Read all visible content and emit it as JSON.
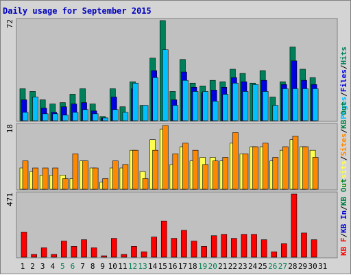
{
  "title": "Daily usage for September 2015",
  "colors": {
    "outer_bg": "#d4d4d4",
    "plot_bg": "#c0c0c0",
    "title": "#0000c0",
    "pages": "#00c0ff",
    "files": "#0000e0",
    "hits": "#00805a",
    "visits": "#ffff50",
    "sites": "#ff8800",
    "kb_out": "#008040",
    "kb_in": "#0000d0",
    "kb_f": "#ff0000",
    "weekend": "#008050",
    "weekday": "#000000"
  },
  "chart_data": [
    {
      "type": "bar",
      "panel": "hits",
      "ymax_label": "72",
      "ylim": [
        0,
        72
      ],
      "legend": [
        "Pages",
        "Files",
        "Hits"
      ],
      "legend_separator": "/",
      "categories": [
        "1",
        "2",
        "3",
        "4",
        "5",
        "6",
        "7",
        "8",
        "9",
        "10",
        "11",
        "12",
        "13",
        "14",
        "15",
        "16",
        "17",
        "18",
        "19",
        "20",
        "21",
        "22",
        "23",
        "24",
        "25",
        "26",
        "27",
        "28",
        "29",
        "30",
        "31"
      ],
      "series": [
        {
          "name": "Hits",
          "values": [
            23,
            21,
            15,
            12,
            13,
            19,
            23,
            12,
            3,
            23,
            10,
            28,
            11,
            45,
            72,
            21,
            44,
            27,
            25,
            29,
            28,
            37,
            34,
            27,
            36,
            17,
            28,
            53,
            37,
            31,
            0
          ]
        },
        {
          "name": "Files",
          "values": [
            15,
            0,
            9,
            6,
            10,
            12,
            13,
            7,
            2,
            17,
            0,
            23,
            0,
            36,
            0,
            15,
            35,
            24,
            20,
            22,
            24,
            31,
            28,
            0,
            29,
            0,
            26,
            43,
            29,
            26,
            0
          ]
        },
        {
          "name": "Pages",
          "values": [
            6,
            17,
            5,
            5,
            4,
            6,
            8,
            5,
            2,
            8,
            6,
            27,
            11,
            31,
            51,
            11,
            29,
            21,
            21,
            14,
            19,
            27,
            21,
            26,
            21,
            11,
            23,
            23,
            23,
            23,
            0
          ]
        }
      ]
    },
    {
      "type": "bar",
      "panel": "visits",
      "ymax_label": "18",
      "ylim": [
        0,
        18
      ],
      "legend": [
        "Visits",
        "Sites",
        "KB Out"
      ],
      "legend_separator": "/",
      "categories": [
        "1",
        "2",
        "3",
        "4",
        "5",
        "6",
        "7",
        "8",
        "9",
        "10",
        "11",
        "12",
        "13",
        "14",
        "15",
        "16",
        "17",
        "18",
        "19",
        "20",
        "21",
        "22",
        "23",
        "24",
        "25",
        "26",
        "27",
        "28",
        "29",
        "30",
        "31"
      ],
      "series": [
        {
          "name": "Visits",
          "values": [
            6,
            5,
            4,
            4,
            4,
            3,
            8,
            6,
            2,
            6,
            6,
            11,
            5,
            14,
            17,
            7,
            12,
            8,
            9,
            9,
            8,
            13,
            10,
            12,
            12,
            8,
            11,
            14,
            12,
            11,
            0
          ]
        },
        {
          "name": "Sites",
          "values": [
            8,
            6,
            6,
            6,
            3,
            10,
            8,
            6,
            3,
            8,
            7,
            11,
            3,
            11,
            18,
            10,
            13,
            11,
            7,
            8,
            9,
            16,
            10,
            12,
            13,
            9,
            12,
            15,
            12,
            9,
            0
          ]
        }
      ]
    },
    {
      "type": "bar",
      "panel": "kbytes",
      "ymax_label": "471",
      "ylim": [
        0,
        471
      ],
      "legend": [
        "KB F",
        "KB In",
        "KB Out"
      ],
      "legend_separator": "/",
      "categories": [
        "1",
        "2",
        "3",
        "4",
        "5",
        "6",
        "7",
        "8",
        "9",
        "10",
        "11",
        "12",
        "13",
        "14",
        "15",
        "16",
        "17",
        "18",
        "19",
        "20",
        "21",
        "22",
        "23",
        "24",
        "25",
        "26",
        "27",
        "28",
        "29",
        "30",
        "31"
      ],
      "series": [
        {
          "name": "KB F",
          "values": [
            187,
            20,
            70,
            20,
            120,
            80,
            130,
            70,
            10,
            140,
            20,
            80,
            40,
            150,
            270,
            140,
            200,
            120,
            80,
            160,
            170,
            140,
            170,
            170,
            130,
            40,
            100,
            471,
            180,
            130,
            0
          ]
        }
      ]
    }
  ]
}
